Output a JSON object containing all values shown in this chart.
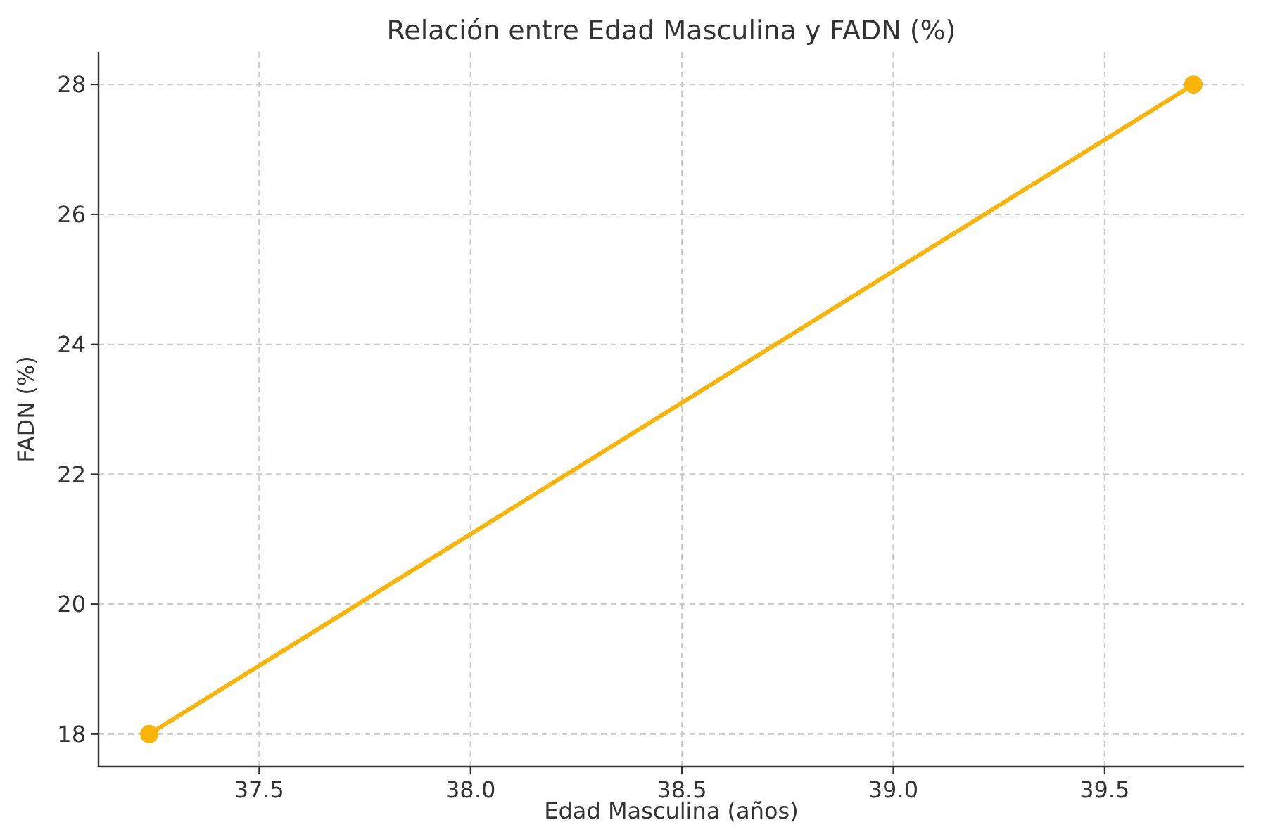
{
  "chart_data": {
    "type": "line",
    "title": "Relación entre Edad Masculina y FADN (%)",
    "xlabel": "Edad Masculina (años)",
    "ylabel": "FADN (%)",
    "x": [
      37.24,
      39.71
    ],
    "series": [
      {
        "color": "#f9b406",
        "values": [
          18,
          28
        ]
      }
    ],
    "xlim": [
      37.12,
      39.83
    ],
    "xticks": [
      {
        "value": 37.5,
        "label": "37.5"
      },
      {
        "value": 38,
        "label": "38.0"
      },
      {
        "value": 38.5,
        "label": "38.5"
      },
      {
        "value": 39,
        "label": "39.0"
      },
      {
        "value": 39.5,
        "label": "39.5"
      }
    ],
    "ylim": [
      17.5,
      28.5
    ],
    "yticks": [
      18,
      20,
      22,
      24,
      26,
      28
    ],
    "grid": true,
    "marker": "circle",
    "line_style": "solid"
  }
}
